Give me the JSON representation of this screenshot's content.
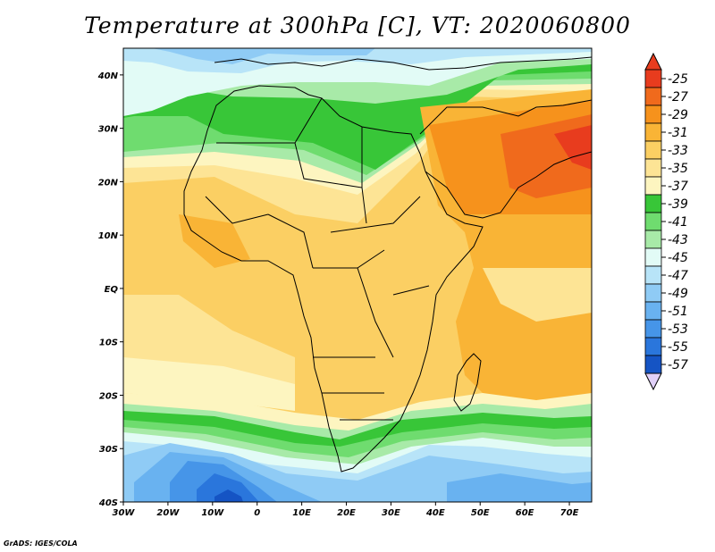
{
  "title": "Temperature at 300hPa [C], VT: 2020060800",
  "credit": "GrADS: IGES/COLA",
  "map": {
    "lon_range": [
      -30,
      75
    ],
    "lat_range": [
      -40,
      45
    ],
    "lon_ticks": [
      {
        "value": -30,
        "label": "30W"
      },
      {
        "value": -20,
        "label": "20W"
      },
      {
        "value": -10,
        "label": "10W"
      },
      {
        "value": 0,
        "label": "0"
      },
      {
        "value": 10,
        "label": "10E"
      },
      {
        "value": 20,
        "label": "20E"
      },
      {
        "value": 30,
        "label": "30E"
      },
      {
        "value": 40,
        "label": "40E"
      },
      {
        "value": 50,
        "label": "50E"
      },
      {
        "value": 60,
        "label": "60E"
      },
      {
        "value": 70,
        "label": "70E"
      }
    ],
    "lat_ticks": [
      {
        "value": 40,
        "label": "40N"
      },
      {
        "value": 30,
        "label": "30N"
      },
      {
        "value": 20,
        "label": "20N"
      },
      {
        "value": 10,
        "label": "10N"
      },
      {
        "value": 0,
        "label": "EQ"
      },
      {
        "value": -10,
        "label": "10S"
      },
      {
        "value": -20,
        "label": "20S"
      },
      {
        "value": -30,
        "label": "30S"
      },
      {
        "value": -40,
        "label": "40S"
      }
    ]
  },
  "colorbar": {
    "labels": [
      "-25",
      "-27",
      "-29",
      "-31",
      "-33",
      "-35",
      "-37",
      "-39",
      "-41",
      "-43",
      "-45",
      "-47",
      "-49",
      "-51",
      "-53",
      "-55",
      "-57"
    ],
    "colors": [
      "#e83c1e",
      "#f06a1c",
      "#f6921c",
      "#f9b436",
      "#fbcf63",
      "#fde495",
      "#fdf5c0",
      "#38c638",
      "#6fdc6f",
      "#a8eaa8",
      "#e2fbf6",
      "#b8e4f8",
      "#8fcbf5",
      "#69b2f0",
      "#4695e8",
      "#2a76dc",
      "#1554c4",
      "#0a2a90"
    ],
    "top_arrow_color": "#e83c1e",
    "bottom_arrow_color": "#e0d0f8"
  }
}
